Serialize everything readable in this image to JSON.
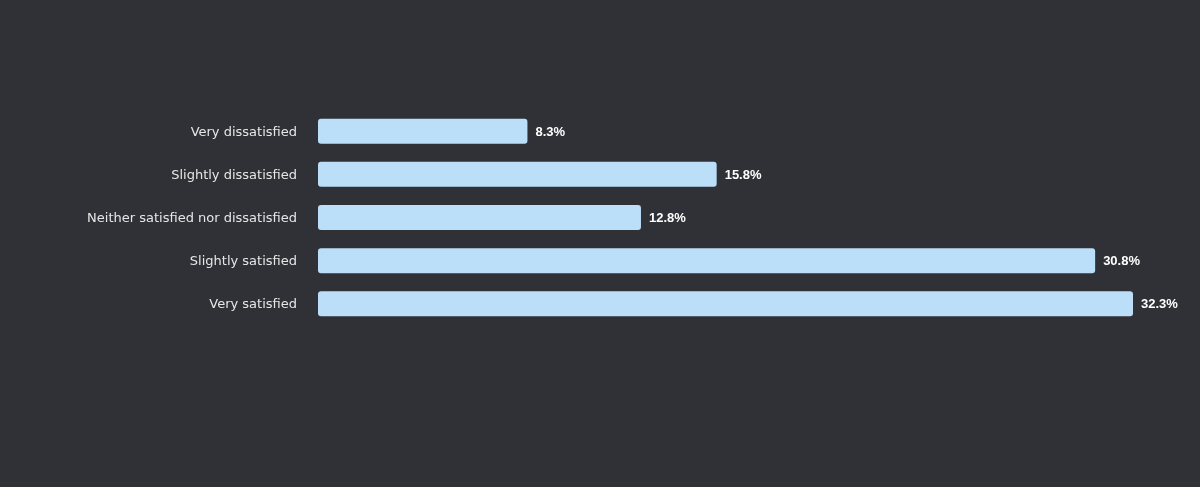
{
  "chart_data": {
    "type": "bar",
    "orientation": "horizontal",
    "categories": [
      "Very dissatisfied",
      "Slightly dissatisfied",
      "Neither satisfied nor dissatisfied",
      "Slightly satisfied",
      "Very satisfied"
    ],
    "values": [
      8.3,
      15.8,
      12.8,
      30.8,
      32.3
    ],
    "color": "#bbdef9",
    "data_labels": true,
    "value_labels": [
      "8.3%",
      "15.8%",
      "12.8%",
      "30.8%",
      "32.3%"
    ]
  }
}
